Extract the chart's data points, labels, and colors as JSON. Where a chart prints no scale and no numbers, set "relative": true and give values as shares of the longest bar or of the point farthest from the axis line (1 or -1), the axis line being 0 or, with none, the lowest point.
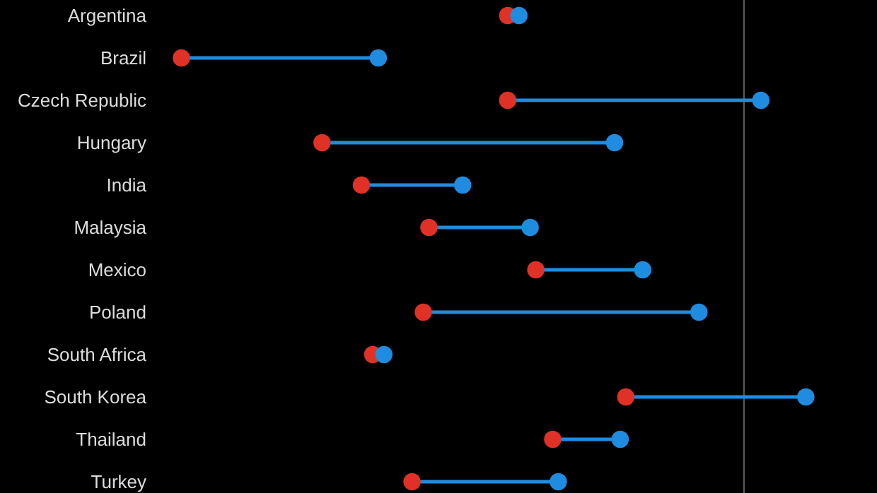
{
  "chart_data": {
    "type": "scatter",
    "orientation": "horizontal",
    "relative": true,
    "marker": "circle",
    "categories": [
      "Argentina",
      "Brazil",
      "Czech Republic",
      "Hungary",
      "India",
      "Malaysia",
      "Mexico",
      "Poland",
      "South Africa",
      "South Korea",
      "Thailand",
      "Turkey"
    ],
    "series": [
      {
        "color": "#e03127",
        "values": [
          -0.42,
          -1,
          -0.42,
          -0.75,
          -0.68,
          -0.56,
          -0.37,
          -0.57,
          -0.66,
          -0.21,
          -0.34,
          -0.59
        ]
      },
      {
        "color": "#1f8ce0",
        "values": [
          -0.4,
          -0.65,
          0.03,
          -0.23,
          -0.5,
          -0.38,
          -0.18,
          -0.08,
          -0.64,
          0.11,
          -0.22,
          -0.33
        ]
      }
    ]
  }
}
